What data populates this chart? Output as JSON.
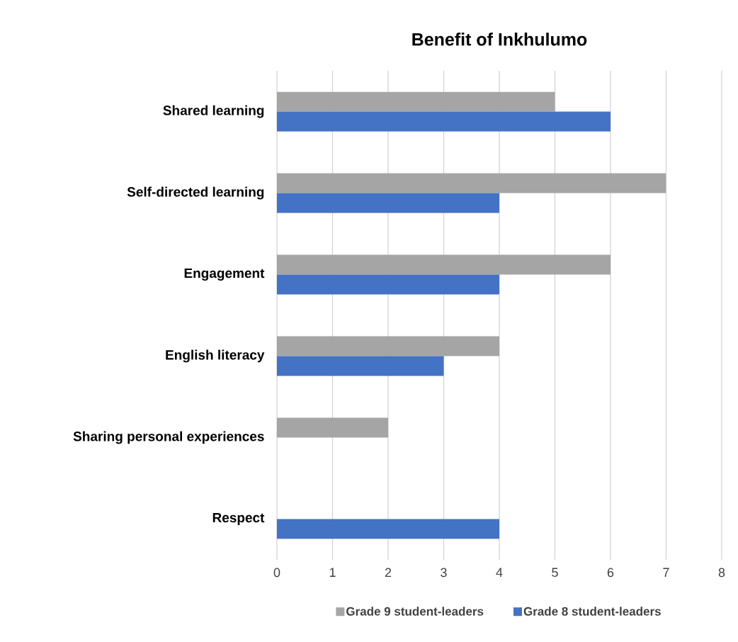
{
  "chart_data": {
    "type": "bar",
    "orientation": "horizontal",
    "title": "Benefit of Inkhulumo",
    "categories": [
      "Shared learning",
      "Self-directed learning",
      "Engagement",
      "English literacy",
      "Sharing personal experiences",
      "Respect"
    ],
    "series": [
      {
        "name": "Grade 9 student-leaders",
        "color": "#a5a5a5",
        "values": [
          5,
          7,
          6,
          4,
          2,
          0
        ]
      },
      {
        "name": "Grade 8 student-leaders",
        "color": "#4472c4",
        "values": [
          6,
          4,
          4,
          3,
          0,
          4
        ]
      }
    ],
    "xlim": [
      0,
      8
    ],
    "xticks": [
      0,
      1,
      2,
      3,
      4,
      5,
      6,
      7,
      8
    ],
    "grid": "x",
    "legend": "bottom"
  }
}
